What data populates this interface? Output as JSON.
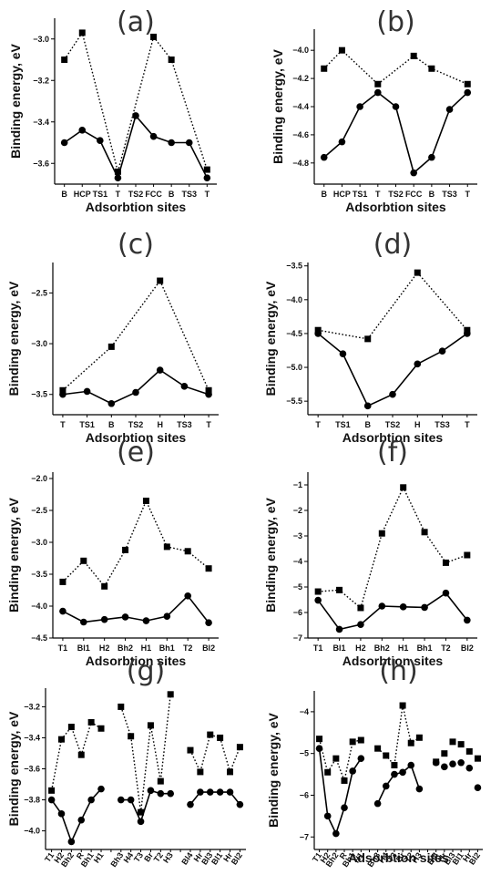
{
  "chart_data": [
    {
      "panel_label": "(a)",
      "type": "line",
      "xlabel": "Adsorbtion sites",
      "ylabel": "Binding energy, eV",
      "categories": [
        "B",
        "HCP",
        "TS1",
        "T",
        "TS2",
        "FCC",
        "B",
        "TS3",
        "T"
      ],
      "ylim": [
        -3.7,
        -2.9
      ],
      "yticks": [
        -3.6,
        -3.4,
        -3.2,
        -3.0
      ],
      "tick_decimals": 1,
      "series": [
        {
          "marker": "square",
          "style": "dotted",
          "segments": [
            [
              0,
              3
            ],
            [
              3,
              5
            ],
            [
              5,
              8
            ]
          ],
          "values": [
            -3.1,
            -2.97,
            null,
            -3.64,
            null,
            -2.99,
            -3.1,
            null,
            -3.63
          ]
        },
        {
          "marker": "circle",
          "style": "solid",
          "segments": [
            [
              0,
              3
            ],
            [
              3,
              8
            ]
          ],
          "values": [
            -3.5,
            -3.44,
            -3.49,
            -3.67,
            -3.37,
            -3.47,
            -3.5,
            -3.5,
            -3.67
          ]
        }
      ]
    },
    {
      "panel_label": "(b)",
      "type": "line",
      "xlabel": "Adsorbtion sites",
      "ylabel": "Binding energy, eV",
      "categories": [
        "B",
        "HCP",
        "TS1",
        "T",
        "TS2",
        "FCC",
        "B",
        "TS3",
        "T"
      ],
      "ylim": [
        -4.95,
        -3.85
      ],
      "yticks": [
        -4.8,
        -4.6,
        -4.4,
        -4.2,
        -4.0
      ],
      "tick_decimals": 1,
      "series": [
        {
          "marker": "square",
          "style": "dotted",
          "segments": [
            [
              0,
              3
            ],
            [
              3,
              5
            ],
            [
              5,
              8
            ]
          ],
          "values": [
            -4.13,
            -4.0,
            null,
            -4.24,
            null,
            -4.04,
            -4.13,
            null,
            -4.24
          ]
        },
        {
          "marker": "circle",
          "style": "solid",
          "segments": [
            [
              0,
              8
            ]
          ],
          "values": [
            -4.76,
            -4.65,
            -4.4,
            -4.3,
            -4.4,
            -4.87,
            -4.76,
            -4.42,
            -4.3
          ]
        }
      ]
    },
    {
      "panel_label": "(c)",
      "type": "line",
      "xlabel": "Adsorbtion sites",
      "ylabel": "Binding energy, eV",
      "categories": [
        "T",
        "TS1",
        "B",
        "TS2",
        "H",
        "TS3",
        "T"
      ],
      "ylim": [
        -3.7,
        -2.2
      ],
      "yticks": [
        -3.5,
        -3.0,
        -2.5
      ],
      "tick_decimals": 1,
      "series": [
        {
          "marker": "square",
          "style": "dotted",
          "segments": [
            [
              0,
              2
            ],
            [
              2,
              4
            ],
            [
              4,
              6
            ]
          ],
          "values": [
            -3.46,
            null,
            -3.03,
            null,
            -2.38,
            null,
            -3.46
          ]
        },
        {
          "marker": "circle",
          "style": "solid",
          "segments": [
            [
              0,
              6
            ]
          ],
          "values": [
            -3.5,
            -3.47,
            -3.59,
            -3.48,
            -3.26,
            -3.42,
            -3.5
          ]
        }
      ]
    },
    {
      "panel_label": "(d)",
      "type": "line",
      "xlabel": "Adsorbtion sites",
      "ylabel": "Binding energy, eV",
      "categories": [
        "T",
        "TS1",
        "B",
        "TS2",
        "H",
        "TS3",
        "T"
      ],
      "ylim": [
        -5.7,
        -3.45
      ],
      "yticks": [
        -5.5,
        -5.0,
        -4.5,
        -4.0,
        -3.5
      ],
      "tick_decimals": 1,
      "series": [
        {
          "marker": "square",
          "style": "dotted",
          "segments": [
            [
              0,
              2
            ],
            [
              2,
              4
            ],
            [
              4,
              6
            ]
          ],
          "values": [
            -4.45,
            null,
            -4.58,
            null,
            -3.6,
            null,
            -4.45
          ]
        },
        {
          "marker": "circle",
          "style": "solid",
          "segments": [
            [
              0,
              6
            ]
          ],
          "values": [
            -4.5,
            -4.8,
            -5.57,
            -5.4,
            -4.95,
            -4.76,
            -4.5
          ]
        }
      ]
    },
    {
      "panel_label": "(e)",
      "type": "line",
      "xlabel": "Adsorbtion sites",
      "ylabel": "Binding energy, eV",
      "categories": [
        "T1",
        "Bl1",
        "H2",
        "Bh2",
        "H1",
        "Bh1",
        "T2",
        "Bl2"
      ],
      "ylim": [
        -4.5,
        -1.9
      ],
      "yticks": [
        -4.5,
        -4.0,
        -3.5,
        -3.0,
        -2.5,
        -2.0
      ],
      "tick_decimals": 1,
      "series": [
        {
          "marker": "square",
          "style": "dotted",
          "segments": [
            [
              0,
              7
            ]
          ],
          "values": [
            -3.62,
            -3.29,
            -3.69,
            -3.12,
            -2.35,
            -3.07,
            -3.14,
            -3.41
          ]
        },
        {
          "marker": "circle",
          "style": "solid",
          "segments": [
            [
              0,
              7
            ]
          ],
          "values": [
            -4.08,
            -4.25,
            -4.21,
            -4.17,
            -4.23,
            -4.16,
            -3.84,
            -4.26
          ]
        }
      ]
    },
    {
      "panel_label": "(f)",
      "type": "line",
      "xlabel": "Adsorbtion sites",
      "ylabel": "Binding energy, eV",
      "categories": [
        "T1",
        "Bl1",
        "H2",
        "Bh2",
        "H1",
        "Bh1",
        "T2",
        "Bl2"
      ],
      "ylim": [
        -7.0,
        -0.5
      ],
      "yticks": [
        -7,
        -6,
        -5,
        -4,
        -3,
        -2,
        -1
      ],
      "tick_decimals": 0,
      "series": [
        {
          "marker": "square",
          "style": "dotted",
          "segments": [
            [
              0,
              7
            ]
          ],
          "values": [
            -5.18,
            -5.12,
            -5.82,
            -2.9,
            -1.1,
            -2.85,
            -4.05,
            -3.75
          ]
        },
        {
          "marker": "circle",
          "style": "solid",
          "segments": [
            [
              0,
              7
            ]
          ],
          "values": [
            -5.52,
            -6.66,
            -6.47,
            -5.75,
            -5.78,
            -5.8,
            -5.24,
            -6.3
          ]
        }
      ]
    },
    {
      "panel_label": "(g)",
      "type": "line",
      "xlabel": "",
      "ylabel": "Binding energy, eV",
      "categories": [
        "T1",
        "H2",
        "Bh2",
        "R",
        "Bh1",
        "H1",
        "",
        "Bh3",
        "H4",
        "T3",
        "Br",
        "T2",
        "H3",
        "",
        "Bl4",
        "Hr",
        "Bl3",
        "Bl1",
        "Hr",
        "Bl2"
      ],
      "ylim": [
        -4.12,
        -3.08
      ],
      "yticks": [
        -4.0,
        -3.8,
        -3.6,
        -3.4,
        -3.2
      ],
      "tick_decimals": 1,
      "series": [
        {
          "marker": "square",
          "style": "dotted",
          "segments": [
            [
              0,
              5
            ],
            [
              7,
              12
            ],
            [
              14,
              19
            ]
          ],
          "values": [
            -3.74,
            -3.41,
            -3.33,
            -3.51,
            -3.3,
            -3.34,
            null,
            -3.2,
            -3.39,
            -3.88,
            -3.32,
            -3.68,
            -3.12,
            null,
            -3.48,
            -3.62,
            -3.38,
            -3.4,
            -3.62,
            -3.46
          ]
        },
        {
          "marker": "circle",
          "style": "solid",
          "segments": [
            [
              0,
              5
            ],
            [
              7,
              12
            ],
            [
              14,
              19
            ]
          ],
          "values": [
            -3.8,
            -3.89,
            -4.07,
            -3.93,
            -3.8,
            -3.73,
            null,
            -3.8,
            -3.8,
            -3.94,
            -3.74,
            -3.76,
            -3.76,
            null,
            -3.83,
            -3.75,
            -3.75,
            -3.75,
            -3.75,
            -3.83
          ]
        }
      ]
    },
    {
      "panel_label": "(h)",
      "type": "line",
      "xlabel": "Adsorbtion sites",
      "ylabel": "Binding energy, eV",
      "categories": [
        "T1",
        "H2",
        "Bh2",
        "R",
        "Bh1",
        "H1",
        "",
        "Bh3",
        "H4",
        "T3",
        "Br",
        "T2",
        "H3",
        "",
        "Bl4",
        "Hr",
        "Bl3",
        "Bl1",
        "Hr",
        "Bl2"
      ],
      "ylim": [
        -7.3,
        -3.5
      ],
      "yticks": [
        -7,
        -6,
        -5,
        -4
      ],
      "tick_decimals": 0,
      "series": [
        {
          "marker": "square",
          "style": "dotted",
          "segments": [
            [
              0,
              5
            ],
            [
              7,
              12
            ]
          ],
          "values": [
            -4.65,
            -5.45,
            -5.12,
            -5.65,
            -4.72,
            -4.68,
            null,
            -4.88,
            -5.05,
            -5.28,
            -3.85,
            -4.75,
            -4.62,
            null,
            -5.2,
            -5.0,
            -4.72,
            -4.78,
            -4.95,
            -5.12
          ]
        },
        {
          "marker": "circle",
          "style": "solid",
          "segments": [
            [
              0,
              5
            ],
            [
              7,
              12
            ]
          ],
          "values": [
            -4.88,
            -6.5,
            -6.92,
            -6.3,
            -5.42,
            -5.12,
            null,
            -6.2,
            -5.78,
            -5.5,
            -5.45,
            -5.28,
            -5.85,
            null,
            -5.22,
            -5.32,
            -5.25,
            -5.22,
            -5.35,
            -5.82
          ]
        }
      ]
    }
  ]
}
